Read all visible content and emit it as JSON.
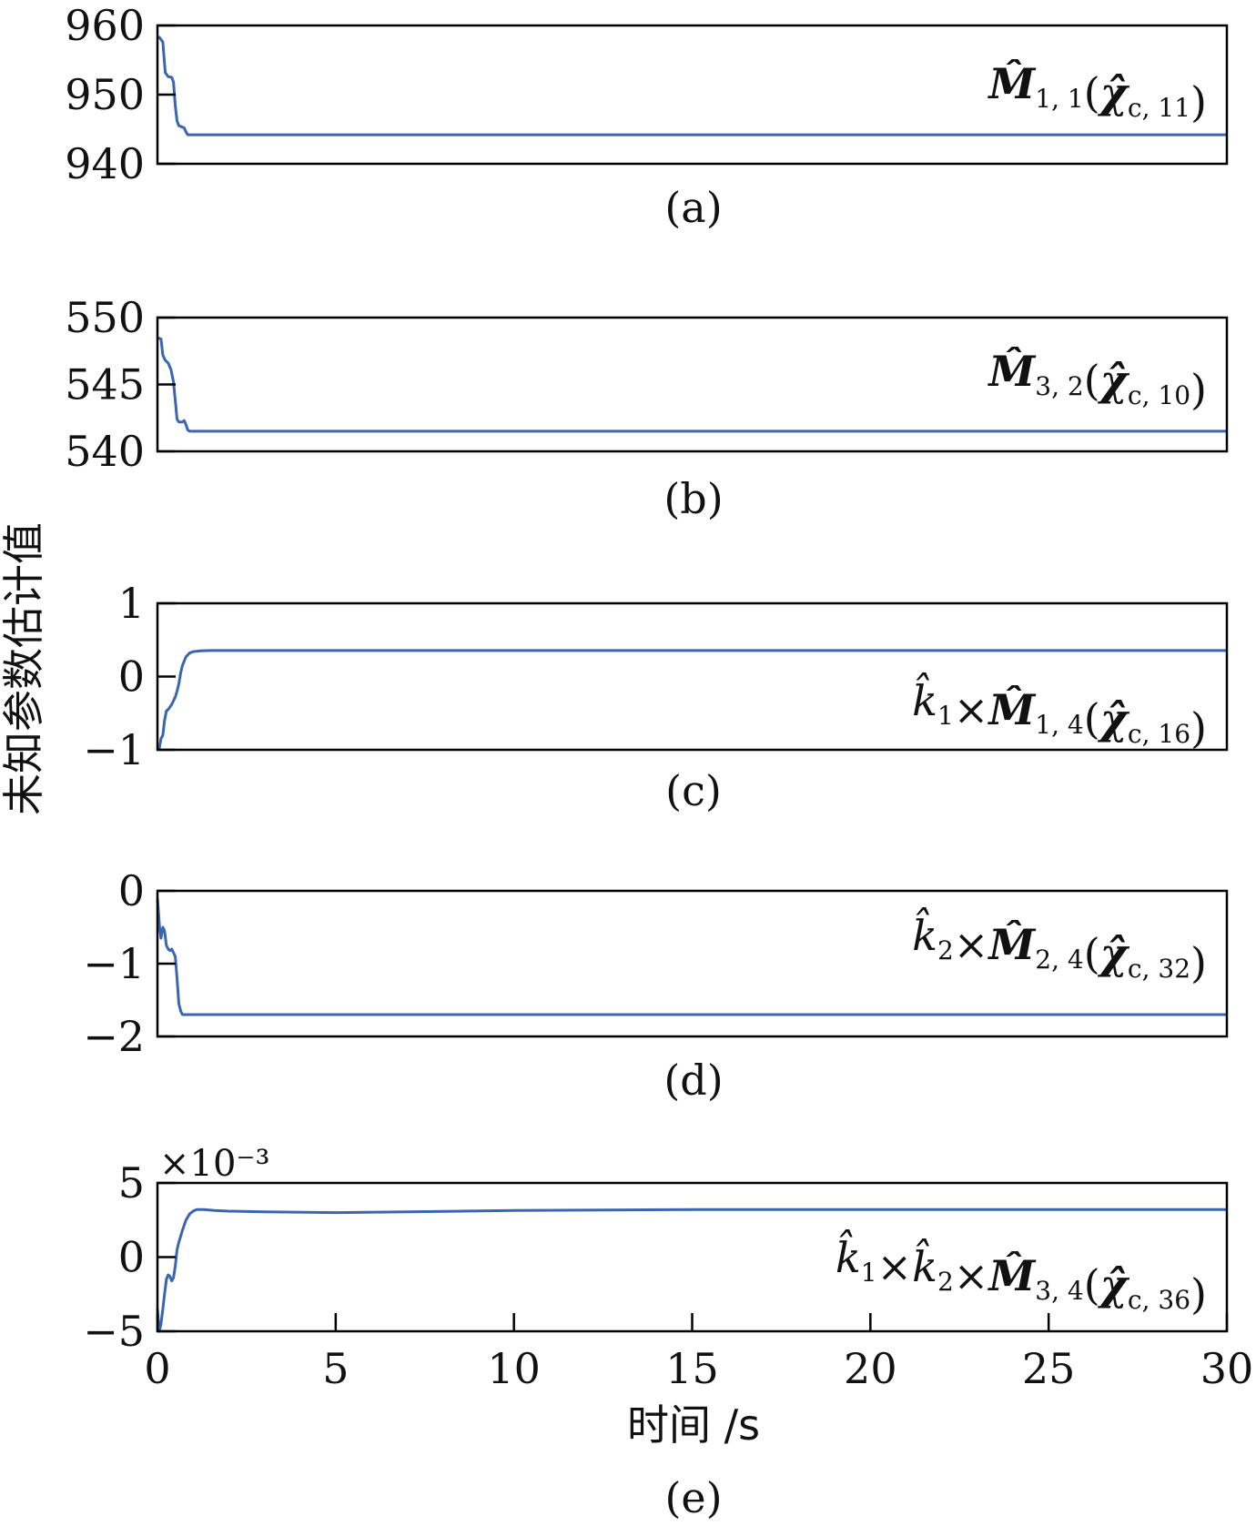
{
  "colors": {
    "line": "#3a66b0",
    "axis": "#000000"
  },
  "x_axis": {
    "label": "时间 /s",
    "ticks": [
      "0",
      "5",
      "10",
      "15",
      "20",
      "25",
      "30"
    ]
  },
  "y_axis": {
    "label": "未知参数估计值"
  },
  "multiplier_label": "×10⁻³",
  "chart_data": [
    {
      "type": "line",
      "caption": "(a)",
      "annotation": {
        "parts": [
          {
            "t": "M̂",
            "s": "bold"
          },
          {
            "t": "1, 1",
            "s": "sub"
          },
          {
            "t": "(",
            "s": "n"
          },
          {
            "t": "χ̂",
            "s": "bold"
          },
          {
            "t": "c, 11",
            "s": "sub"
          },
          {
            "t": ")",
            "s": "n"
          }
        ]
      },
      "ylim": [
        940,
        960
      ],
      "yticks": [
        940,
        950,
        960
      ],
      "ytick_labels": [
        "940",
        "950",
        "960"
      ],
      "xlim": [
        0,
        30
      ],
      "x": [
        0,
        0.05,
        0.15,
        0.22,
        0.3,
        0.4,
        0.45,
        0.5,
        0.55,
        0.6,
        0.7,
        0.75,
        0.8,
        0.85,
        0.9,
        1.0,
        5,
        10,
        15,
        20,
        25,
        30
      ],
      "y": [
        958.2,
        958.3,
        957.6,
        953.2,
        952.6,
        952.5,
        951.8,
        948.4,
        946.2,
        945.5,
        945.3,
        945.2,
        944.6,
        944.2,
        944.2,
        944.2,
        944.2,
        944.2,
        944.2,
        944.2,
        944.2,
        944.2
      ]
    },
    {
      "type": "line",
      "caption": "(b)",
      "annotation": {
        "parts": [
          {
            "t": "M̂",
            "s": "bold"
          },
          {
            "t": "3, 2",
            "s": "sub"
          },
          {
            "t": "(",
            "s": "n"
          },
          {
            "t": "χ̂",
            "s": "bold"
          },
          {
            "t": "c, 10",
            "s": "sub"
          },
          {
            "t": ")",
            "s": "n"
          }
        ]
      },
      "ylim": [
        540,
        550
      ],
      "yticks": [
        540,
        545,
        550
      ],
      "ytick_labels": [
        "540",
        "545",
        "550"
      ],
      "xlim": [
        0,
        30
      ],
      "x": [
        0,
        0.1,
        0.15,
        0.22,
        0.3,
        0.38,
        0.45,
        0.5,
        0.55,
        0.6,
        0.7,
        0.75,
        0.8,
        0.85,
        0.9,
        1.0,
        5,
        10,
        15,
        20,
        25,
        30
      ],
      "y": [
        548.5,
        548.4,
        547.2,
        546.8,
        546.6,
        546.1,
        545.2,
        543.8,
        542.4,
        542.2,
        542.2,
        542.3,
        542.0,
        541.6,
        541.5,
        541.5,
        541.5,
        541.5,
        541.5,
        541.5,
        541.5,
        541.5
      ]
    },
    {
      "type": "line",
      "caption": "(c)",
      "annotation": {
        "parts": [
          {
            "t": "k̂",
            "s": "it"
          },
          {
            "t": "1",
            "s": "sub"
          },
          {
            "t": "×",
            "s": "n"
          },
          {
            "t": "M̂",
            "s": "bold"
          },
          {
            "t": "1, 4",
            "s": "sub"
          },
          {
            "t": "(",
            "s": "n"
          },
          {
            "t": "χ̂",
            "s": "bold"
          },
          {
            "t": "c, 16",
            "s": "sub"
          },
          {
            "t": ")",
            "s": "n"
          }
        ]
      },
      "ylim": [
        -1,
        1
      ],
      "yticks": [
        -1,
        0,
        1
      ],
      "ytick_labels": [
        "−1",
        "0",
        "1"
      ],
      "xlim": [
        0,
        30
      ],
      "x": [
        0,
        0.05,
        0.1,
        0.15,
        0.2,
        0.25,
        0.3,
        0.4,
        0.5,
        0.55,
        0.6,
        0.65,
        0.7,
        0.8,
        0.9,
        1.0,
        1.2,
        1.5,
        2,
        5,
        10,
        15,
        20,
        25,
        30
      ],
      "y": [
        -0.95,
        -0.98,
        -0.85,
        -0.8,
        -0.6,
        -0.47,
        -0.45,
        -0.38,
        -0.28,
        -0.2,
        -0.1,
        0.05,
        0.15,
        0.27,
        0.32,
        0.34,
        0.35,
        0.355,
        0.355,
        0.355,
        0.355,
        0.355,
        0.355,
        0.355,
        0.355
      ]
    },
    {
      "type": "line",
      "caption": "(d)",
      "annotation": {
        "parts": [
          {
            "t": "k̂",
            "s": "it"
          },
          {
            "t": "2",
            "s": "sub"
          },
          {
            "t": "×",
            "s": "n"
          },
          {
            "t": "M̂",
            "s": "bold"
          },
          {
            "t": "2, 4",
            "s": "sub"
          },
          {
            "t": "(",
            "s": "n"
          },
          {
            "t": "χ̂",
            "s": "bold"
          },
          {
            "t": "c, 32",
            "s": "sub"
          },
          {
            "t": ")",
            "s": "n"
          }
        ]
      },
      "ylim": [
        -2,
        0
      ],
      "yticks": [
        -2,
        -1,
        0
      ],
      "ytick_labels": [
        "−2",
        "−1",
        "0"
      ],
      "xlim": [
        0,
        30
      ],
      "x": [
        0,
        0.03,
        0.06,
        0.1,
        0.15,
        0.2,
        0.25,
        0.3,
        0.35,
        0.4,
        0.45,
        0.5,
        0.55,
        0.6,
        0.65,
        0.7,
        0.8,
        1.0,
        5,
        10,
        15,
        20,
        25,
        30
      ],
      "y": [
        -0.1,
        -0.3,
        -0.5,
        -0.65,
        -0.5,
        -0.55,
        -0.75,
        -0.8,
        -0.82,
        -0.8,
        -0.85,
        -0.9,
        -1.2,
        -1.55,
        -1.65,
        -1.7,
        -1.7,
        -1.7,
        -1.7,
        -1.7,
        -1.7,
        -1.7,
        -1.7,
        -1.7
      ]
    },
    {
      "type": "line",
      "caption": "(e)",
      "annotation": {
        "parts": [
          {
            "t": "k̂",
            "s": "it"
          },
          {
            "t": "1",
            "s": "sub"
          },
          {
            "t": "×",
            "s": "n"
          },
          {
            "t": "k̂",
            "s": "it"
          },
          {
            "t": "2",
            "s": "sub"
          },
          {
            "t": "×",
            "s": "n"
          },
          {
            "t": "M̂",
            "s": "bold"
          },
          {
            "t": "3, 4",
            "s": "sub"
          },
          {
            "t": "(",
            "s": "n"
          },
          {
            "t": "χ̂",
            "s": "bold"
          },
          {
            "t": "c, 36",
            "s": "sub"
          },
          {
            "t": ")",
            "s": "n"
          }
        ]
      },
      "ylim": [
        -5,
        5
      ],
      "yticks": [
        -5,
        0,
        5
      ],
      "ytick_labels": [
        "−5",
        "0",
        "5"
      ],
      "scale_exponent": -3,
      "xlim": [
        0,
        30
      ],
      "x": [
        0,
        0.05,
        0.1,
        0.15,
        0.2,
        0.25,
        0.3,
        0.35,
        0.4,
        0.45,
        0.5,
        0.55,
        0.6,
        0.7,
        0.8,
        0.9,
        1.0,
        1.1,
        1.3,
        1.6,
        2,
        3,
        5,
        7,
        10,
        15,
        20,
        25,
        30
      ],
      "y": [
        -3.5,
        -5.0,
        -4.5,
        -3.5,
        -2.5,
        -1.5,
        -1.2,
        -1.3,
        -1.6,
        -1.4,
        -0.6,
        0.5,
        1.0,
        1.8,
        2.5,
        2.9,
        3.1,
        3.2,
        3.2,
        3.15,
        3.1,
        3.05,
        3.0,
        3.05,
        3.15,
        3.2,
        3.2,
        3.2,
        3.2
      ]
    }
  ]
}
